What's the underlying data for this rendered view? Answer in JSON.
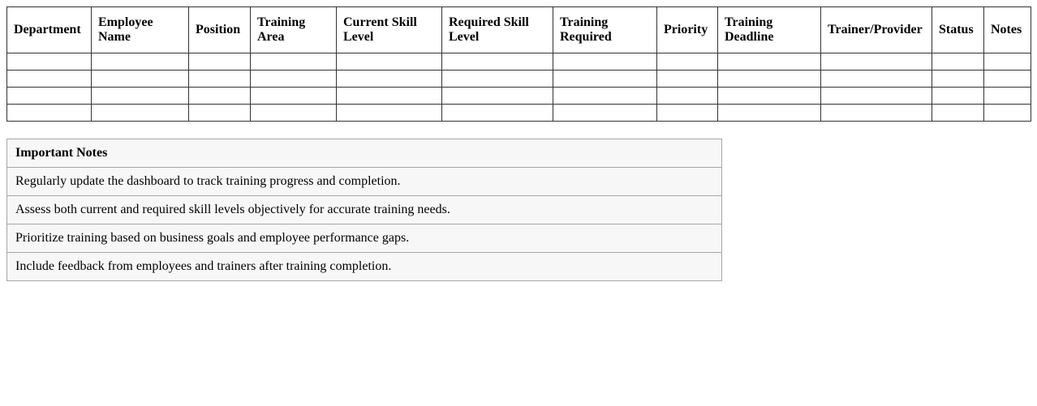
{
  "training_table": {
    "headers": [
      "Department",
      "Employee Name",
      "Position",
      "Training Area",
      "Current Skill Level",
      "Required Skill Level",
      "Training Required",
      "Priority",
      "Training Deadline",
      "Trainer/Provider",
      "Status",
      "Notes"
    ],
    "empty_row_count": 4
  },
  "notes_panel": {
    "title": "Important Notes",
    "items": [
      "Regularly update the dashboard to track training progress and completion.",
      "Assess both current and required skill levels objectively for accurate training needs.",
      "Prioritize training based on business goals and employee performance gaps.",
      "Include feedback from employees and trainers after training completion."
    ]
  },
  "colors": {
    "main_table_border": "#333333",
    "notes_border": "#a6a6a6",
    "notes_background": "#f7f7f7",
    "page_background": "#ffffff"
  }
}
